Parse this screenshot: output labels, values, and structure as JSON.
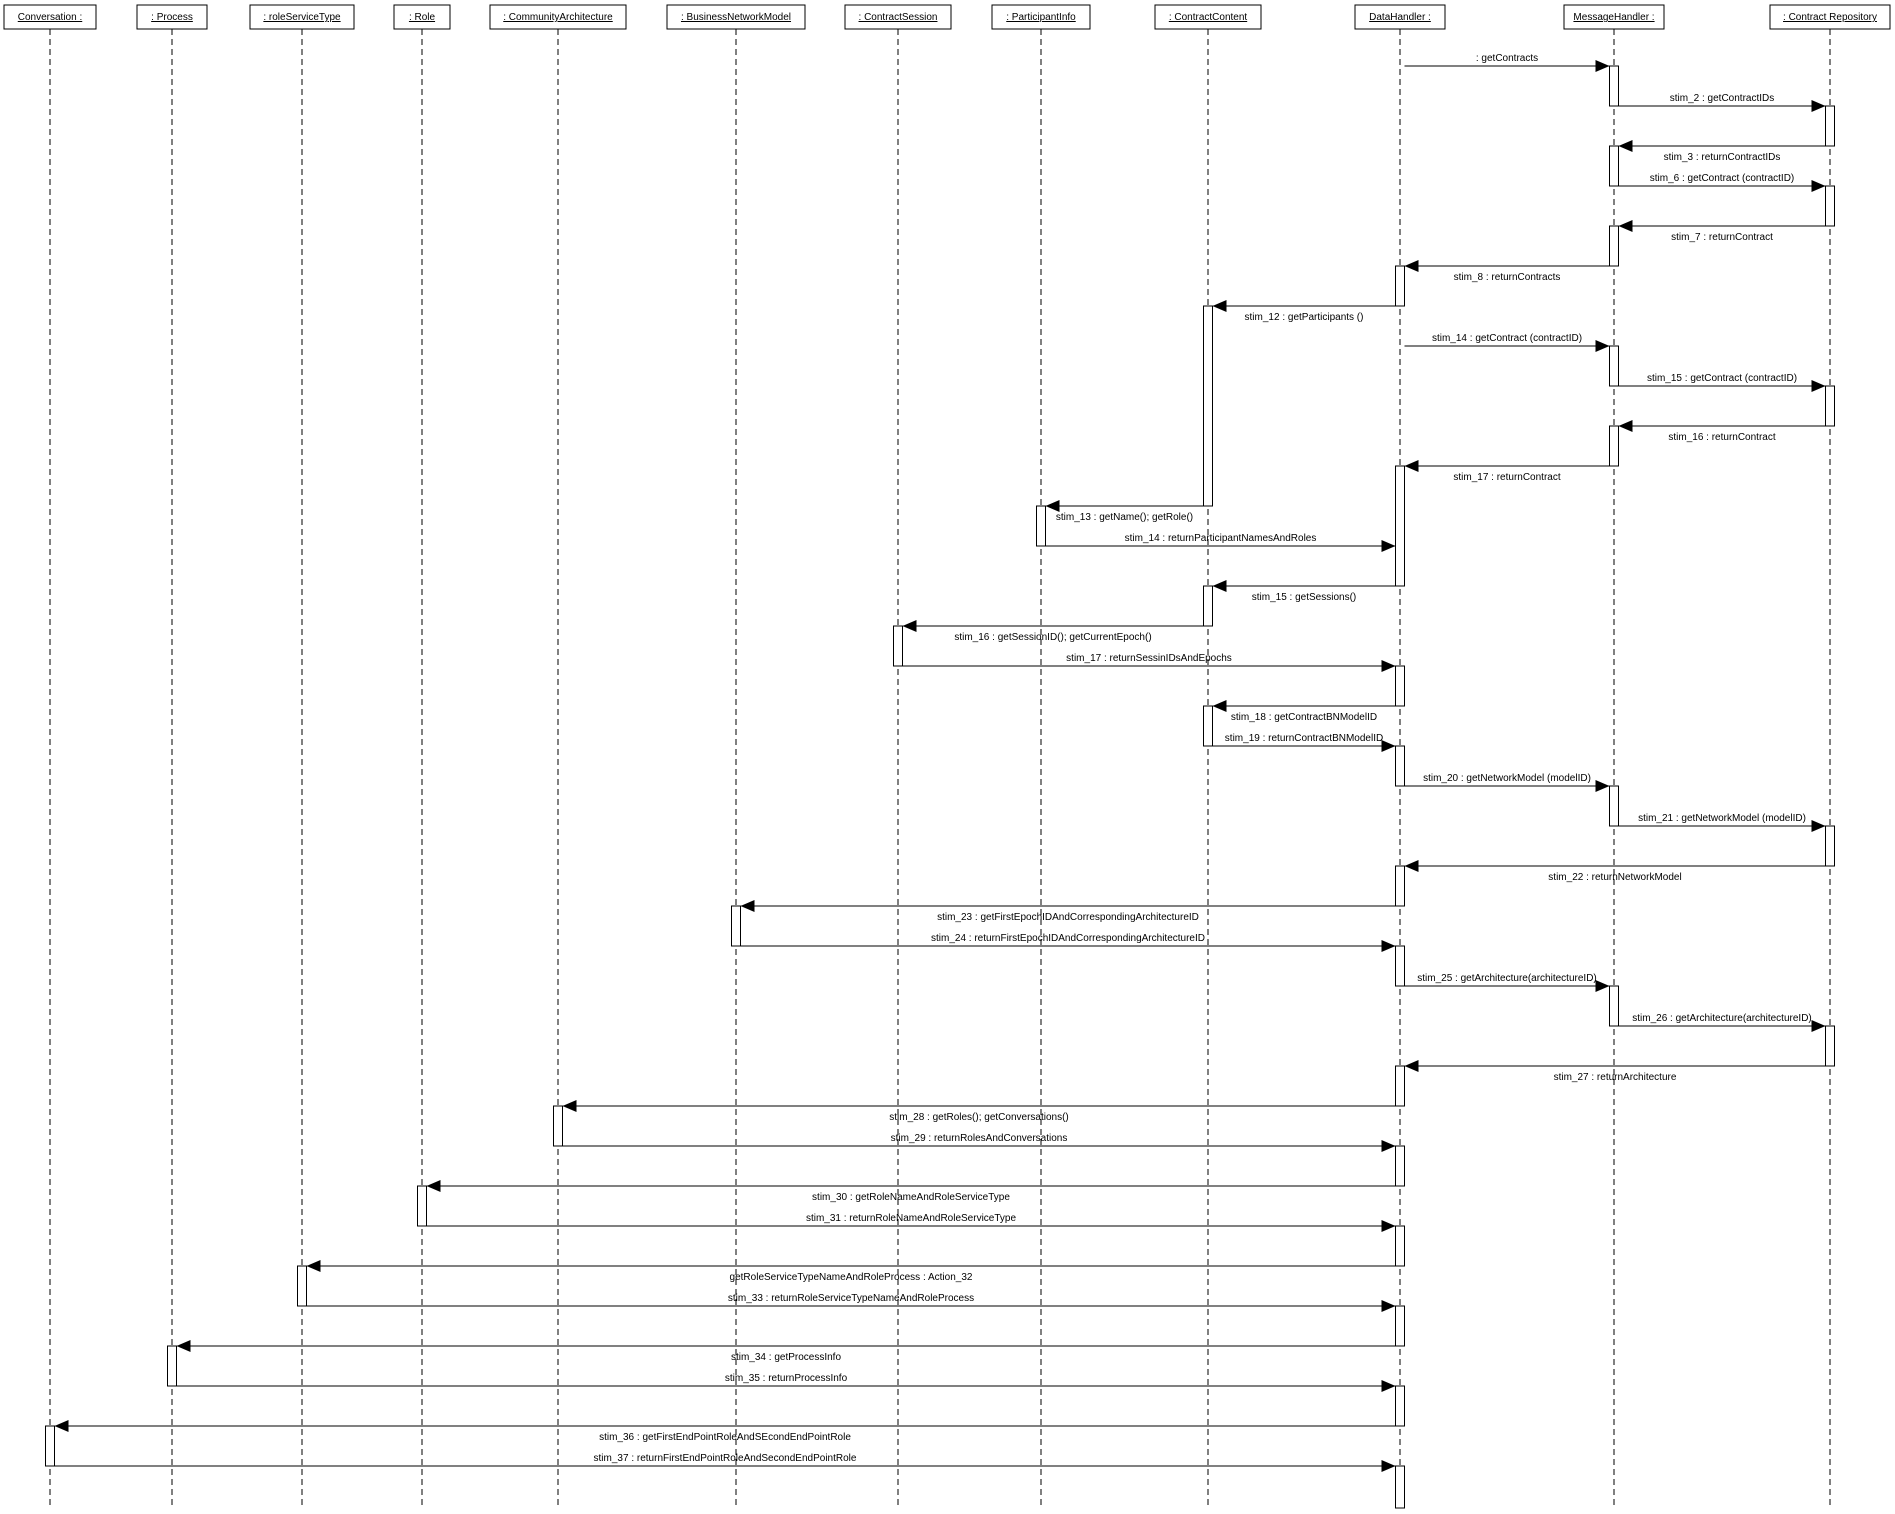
{
  "objects": [
    {
      "id": "conversation",
      "label": "Conversation :"
    },
    {
      "id": "process",
      "label": ": Process"
    },
    {
      "id": "roleservicetype",
      "label": ": roleServiceType"
    },
    {
      "id": "role",
      "label": ": Role"
    },
    {
      "id": "communityarchitecture",
      "label": ": CommunityArchitecture"
    },
    {
      "id": "businessnetworkmodel",
      "label": ": BusinessNetworkModel"
    },
    {
      "id": "contractsession",
      "label": ": ContractSession"
    },
    {
      "id": "participantinfo",
      "label": ": ParticipantInfo"
    },
    {
      "id": "contractcontent",
      "label": ": ContractContent"
    },
    {
      "id": "datahandler",
      "label": "DataHandler :"
    },
    {
      "id": "messagehandler",
      "label": "MessageHandler :"
    },
    {
      "id": "contractrepository",
      "label": ": Contract Repository"
    }
  ],
  "messages": [
    {
      "from": "datahandler",
      "to": "messagehandler",
      "label": ": getContracts"
    },
    {
      "from": "messagehandler",
      "to": "contractrepository",
      "label": "stim_2 : getContractIDs"
    },
    {
      "from": "contractrepository",
      "to": "messagehandler",
      "label": "stim_3 : returnContractIDs"
    },
    {
      "from": "messagehandler",
      "to": "contractrepository",
      "label": "stim_6 : getContract (contractID)"
    },
    {
      "from": "contractrepository",
      "to": "messagehandler",
      "label": "stim_7 : returnContract"
    },
    {
      "from": "messagehandler",
      "to": "datahandler",
      "label": "stim_8 : returnContracts"
    },
    {
      "from": "datahandler",
      "to": "contractcontent",
      "label": "stim_12 : getParticipants ()"
    },
    {
      "from": "datahandler",
      "to": "messagehandler",
      "label": "stim_14 : getContract (contractID)"
    },
    {
      "from": "messagehandler",
      "to": "contractrepository",
      "label": "stim_15 : getContract (contractID)"
    },
    {
      "from": "contractrepository",
      "to": "messagehandler",
      "label": "stim_16 : returnContract"
    },
    {
      "from": "messagehandler",
      "to": "datahandler",
      "label": "stim_17 : returnContract"
    },
    {
      "from": "contractcontent",
      "to": "participantinfo",
      "label": "stim_13 : getName(); getRole()"
    },
    {
      "from": "participantinfo",
      "to": "datahandler",
      "label": "stim_14 : returnParticipantNamesAndRoles"
    },
    {
      "from": "datahandler",
      "to": "contractcontent",
      "label": "stim_15 : getSessions()"
    },
    {
      "from": "contractcontent",
      "to": "contractsession",
      "label": "stim_16 : getSessionID(); getCurrentEpoch()"
    },
    {
      "from": "contractsession",
      "to": "datahandler",
      "label": "stim_17 : returnSessinIDsAndEpochs"
    },
    {
      "from": "datahandler",
      "to": "contractcontent",
      "label": "stim_18 : getContractBNModelID"
    },
    {
      "from": "contractcontent",
      "to": "datahandler",
      "label": "stim_19 : returnContractBNModelID"
    },
    {
      "from": "datahandler",
      "to": "messagehandler",
      "label": "stim_20 : getNetworkModel (modelID)"
    },
    {
      "from": "messagehandler",
      "to": "contractrepository",
      "label": "stim_21 : getNetworkModel (modelID)"
    },
    {
      "from": "contractrepository",
      "to": "datahandler",
      "label": "stim_22 : returnNetworkModel"
    },
    {
      "from": "datahandler",
      "to": "businessnetworkmodel",
      "label": "stim_23 : getFirstEpochIDAndCorrespondingArchitectureID"
    },
    {
      "from": "businessnetworkmodel",
      "to": "datahandler",
      "label": "stim_24 : returnFirstEpochIDAndCorrespondingArchitectureID"
    },
    {
      "from": "datahandler",
      "to": "messagehandler",
      "label": "stim_25 : getArchitecture(architectureID)"
    },
    {
      "from": "messagehandler",
      "to": "contractrepository",
      "label": "stim_26 : getArchitecture(architectureID)"
    },
    {
      "from": "contractrepository",
      "to": "datahandler",
      "label": "stim_27 : returnArchitecture"
    },
    {
      "from": "datahandler",
      "to": "communityarchitecture",
      "label": "stim_28 : getRoles(); getConversations()"
    },
    {
      "from": "communityarchitecture",
      "to": "datahandler",
      "label": "stim_29 : returnRolesAndConversations"
    },
    {
      "from": "datahandler",
      "to": "role",
      "label": "stim_30 : getRoleNameAndRoleServiceType"
    },
    {
      "from": "role",
      "to": "datahandler",
      "label": "stim_31 : returnRoleNameAndRoleServiceType"
    },
    {
      "from": "datahandler",
      "to": "roleservicetype",
      "label": "getRoleServiceTypeNameAndRoleProcess : Action_32"
    },
    {
      "from": "roleservicetype",
      "to": "datahandler",
      "label": "stim_33 : returnRoleServiceTypeNameAndRoleProcess"
    },
    {
      "from": "datahandler",
      "to": "process",
      "label": "stim_34 : getProcessInfo"
    },
    {
      "from": "process",
      "to": "datahandler",
      "label": "stim_35 : returnProcessInfo"
    },
    {
      "from": "datahandler",
      "to": "conversation",
      "label": "stim_36 : getFirstEndPointRoleAndSEcondEndPointRole"
    },
    {
      "from": "conversation",
      "to": "datahandler",
      "label": "stim_37 : returnFirstEndPointRoleAndSecondEndPointRole"
    }
  ]
}
